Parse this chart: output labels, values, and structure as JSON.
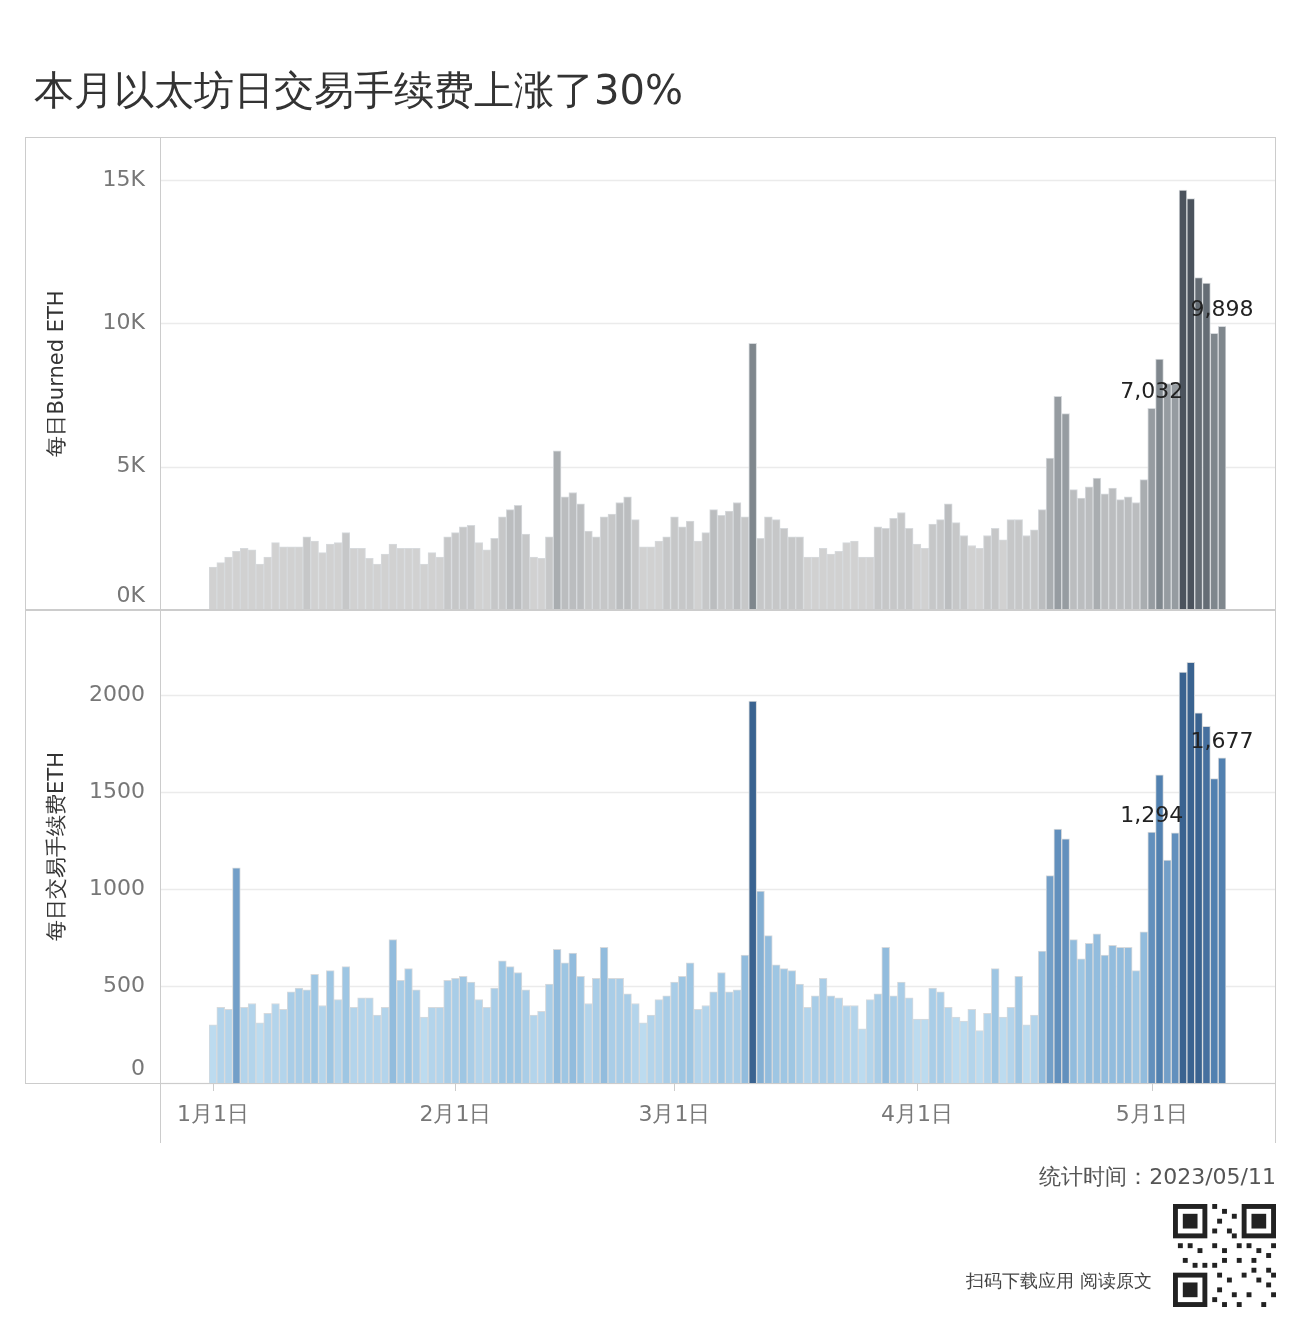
{
  "chart_data": [
    {
      "type": "bar",
      "title": "本月以太坊日交易手续费上涨了30%",
      "ylabel": "每日Burned ETH",
      "categories": [
        null,
        null,
        null,
        null,
        null,
        null,
        null,
        null,
        null,
        null,
        null,
        null,
        null,
        null,
        null,
        null,
        null,
        null,
        null,
        null,
        null,
        null,
        null,
        null,
        null,
        null,
        null,
        null,
        null,
        null,
        null,
        null,
        null,
        null,
        null,
        null,
        null,
        null,
        null,
        null,
        null,
        null,
        null,
        null,
        null,
        null,
        null,
        null,
        null,
        null,
        null,
        null,
        null,
        null,
        null,
        null,
        null,
        null,
        null,
        null,
        null,
        null,
        null,
        null,
        null,
        null,
        null,
        null,
        null,
        null,
        null,
        null,
        null,
        null,
        null,
        null,
        null,
        null,
        null,
        null,
        null,
        null,
        null,
        null,
        null,
        null,
        null,
        null,
        null,
        null,
        null,
        null,
        null,
        null,
        null,
        null,
        null,
        null,
        null,
        null,
        null,
        null,
        null,
        null,
        null,
        null,
        null,
        null,
        null,
        null,
        null,
        null,
        null,
        null,
        null,
        null,
        null,
        null,
        null,
        null,
        null,
        null,
        null,
        null,
        null,
        null,
        null,
        null,
        null,
        null
      ],
      "values": [
        1500,
        1650,
        1850,
        2050,
        2150,
        2100,
        1600,
        1850,
        2350,
        2200,
        2200,
        2200,
        2550,
        2400,
        2000,
        2300,
        2350,
        2700,
        2150,
        2150,
        1800,
        1600,
        1950,
        2300,
        2150,
        2150,
        2150,
        1600,
        2000,
        1850,
        2550,
        2700,
        2900,
        2950,
        2350,
        2100,
        2500,
        3250,
        3500,
        3650,
        2650,
        1850,
        1800,
        2550,
        5550,
        3950,
        4100,
        3700,
        2750,
        2550,
        3250,
        3350,
        3750,
        3950,
        3150,
        2200,
        2200,
        2400,
        2550,
        3250,
        2900,
        3100,
        2400,
        2700,
        3500,
        3300,
        3450,
        3750,
        3250,
        9300,
        2500,
        3250,
        3150,
        2850,
        2550,
        2550,
        1850,
        1850,
        2150,
        1950,
        2050,
        2350,
        2400,
        1850,
        1850,
        2900,
        2850,
        3200,
        3400,
        2850,
        2300,
        2150,
        3000,
        3150,
        3700,
        3050,
        2600,
        2250,
        2150,
        2600,
        2850,
        2450,
        3150,
        3150,
        2600,
        2800,
        3500,
        5300,
        7450,
        6850,
        4200,
        3900,
        4300,
        4600,
        4050,
        4250,
        3850,
        3950,
        3750,
        4550,
        7032,
        8750,
        7900,
        7900,
        14650,
        14350,
        11600,
        11400,
        9650,
        9898
      ],
      "colors": [
        "#d1d1d1",
        "#d1d1d1",
        "#d1d1d1",
        "#d1d1d1",
        "#d1d1d1",
        "#d1d1d1",
        "#d1d1d1",
        "#d1d1d1",
        "#d1d1d1",
        "#d1d1d1",
        "#d1d1d1",
        "#d1d1d1",
        "#c6c7c8",
        "#d1d1d1",
        "#d1d1d1",
        "#d1d1d1",
        "#d1d1d1",
        "#c6c7c8",
        "#d1d1d1",
        "#d1d1d1",
        "#d1d1d1",
        "#d1d1d1",
        "#d1d1d1",
        "#d1d1d1",
        "#d1d1d1",
        "#d1d1d1",
        "#d1d1d1",
        "#d1d1d1",
        "#d1d1d1",
        "#d1d1d1",
        "#c6c7c8",
        "#c6c7c8",
        "#c6c7c8",
        "#c6c7c8",
        "#d1d1d1",
        "#d1d1d1",
        "#c6c7c8",
        "#c6c7c8",
        "#bbbdbf",
        "#bbbdbf",
        "#c6c7c8",
        "#d1d1d1",
        "#d1d1d1",
        "#c6c7c8",
        "#a9adb0",
        "#bbbdbf",
        "#bbbdbf",
        "#bbbdbf",
        "#c6c7c8",
        "#c6c7c8",
        "#c6c7c8",
        "#c6c7c8",
        "#bbbdbf",
        "#bbbdbf",
        "#c6c7c8",
        "#d1d1d1",
        "#d1d1d1",
        "#d1d1d1",
        "#c6c7c8",
        "#c6c7c8",
        "#c6c7c8",
        "#c6c7c8",
        "#d1d1d1",
        "#c6c7c8",
        "#bbbdbf",
        "#c6c7c8",
        "#c6c7c8",
        "#bbbdbf",
        "#c6c7c8",
        "#7f878d",
        "#c6c7c8",
        "#c6c7c8",
        "#c6c7c8",
        "#c6c7c8",
        "#c6c7c8",
        "#c6c7c8",
        "#d1d1d1",
        "#d1d1d1",
        "#d1d1d1",
        "#d1d1d1",
        "#d1d1d1",
        "#d1d1d1",
        "#d1d1d1",
        "#d1d1d1",
        "#d1d1d1",
        "#c6c7c8",
        "#c6c7c8",
        "#c6c7c8",
        "#c6c7c8",
        "#c6c7c8",
        "#d1d1d1",
        "#d1d1d1",
        "#c6c7c8",
        "#c6c7c8",
        "#bbbdbf",
        "#c6c7c8",
        "#c6c7c8",
        "#d1d1d1",
        "#d1d1d1",
        "#c6c7c8",
        "#c6c7c8",
        "#d1d1d1",
        "#c6c7c8",
        "#c6c7c8",
        "#c6c7c8",
        "#c6c7c8",
        "#bbbdbf",
        "#a9adb0",
        "#969ca1",
        "#969ca1",
        "#bbbdbf",
        "#bbbdbf",
        "#bbbdbf",
        "#a9adb0",
        "#bbbdbf",
        "#bbbdbf",
        "#bbbdbf",
        "#bbbdbf",
        "#bbbdbf",
        "#a9adb0",
        "#969ca1",
        "#7f878d",
        "#969ca1",
        "#969ca1",
        "#4b535d",
        "#4b535d",
        "#656d75",
        "#656d75",
        "#7f878d",
        "#7f878d"
      ],
      "ylim": [
        0,
        16500
      ],
      "yticks": [
        {
          "value": 0,
          "label": "0K"
        },
        {
          "value": 5000,
          "label": "5K"
        },
        {
          "value": 10000,
          "label": "10K"
        },
        {
          "value": 15000,
          "label": "15K"
        }
      ],
      "grid": "y",
      "tick_labels": "y",
      "value_labels": [
        null,
        null,
        null,
        null,
        null,
        null,
        null,
        null,
        null,
        null,
        null,
        null,
        null,
        null,
        null,
        null,
        null,
        null,
        null,
        null,
        null,
        null,
        null,
        null,
        null,
        null,
        null,
        null,
        null,
        null,
        null,
        null,
        null,
        null,
        null,
        null,
        null,
        null,
        null,
        null,
        null,
        null,
        null,
        null,
        null,
        null,
        null,
        null,
        null,
        null,
        null,
        null,
        null,
        null,
        null,
        null,
        null,
        null,
        null,
        null,
        null,
        null,
        null,
        null,
        null,
        null,
        null,
        null,
        null,
        null,
        null,
        null,
        null,
        null,
        null,
        null,
        null,
        null,
        null,
        null,
        null,
        null,
        null,
        null,
        null,
        null,
        null,
        null,
        null,
        null,
        null,
        null,
        null,
        null,
        null,
        null,
        null,
        null,
        null,
        null,
        null,
        null,
        null,
        null,
        null,
        null,
        null,
        null,
        null,
        null,
        null,
        null,
        null,
        null,
        null,
        null,
        null,
        null,
        null,
        null,
        "7,032",
        null,
        null,
        null,
        null,
        null,
        null,
        null,
        null,
        "9,898"
      ]
    },
    {
      "type": "bar",
      "ylabel": "每日交易手续费ETH",
      "categories": [
        "1月1日",
        null,
        null,
        null,
        null,
        null,
        null,
        null,
        null,
        null,
        null,
        null,
        null,
        null,
        null,
        null,
        null,
        null,
        null,
        null,
        null,
        null,
        null,
        null,
        null,
        null,
        null,
        null,
        null,
        null,
        null,
        "2月1日",
        null,
        null,
        null,
        null,
        null,
        null,
        null,
        null,
        null,
        null,
        null,
        null,
        null,
        null,
        null,
        null,
        null,
        null,
        null,
        null,
        null,
        null,
        null,
        null,
        null,
        null,
        null,
        "3月1日",
        null,
        null,
        null,
        null,
        null,
        null,
        null,
        null,
        null,
        null,
        null,
        null,
        null,
        null,
        null,
        null,
        null,
        null,
        null,
        null,
        null,
        null,
        null,
        null,
        null,
        null,
        null,
        null,
        null,
        null,
        "4月1日",
        null,
        null,
        null,
        null,
        null,
        null,
        null,
        null,
        null,
        null,
        null,
        null,
        null,
        null,
        null,
        null,
        null,
        null,
        null,
        null,
        null,
        null,
        null,
        null,
        null,
        null,
        null,
        null,
        null,
        "5月1日",
        null,
        null,
        null,
        null,
        null,
        null,
        null,
        null,
        null
      ],
      "values": [
        300,
        390,
        380,
        1110,
        390,
        410,
        310,
        360,
        410,
        380,
        470,
        490,
        480,
        560,
        400,
        580,
        430,
        600,
        390,
        440,
        440,
        350,
        390,
        740,
        530,
        590,
        480,
        340,
        390,
        390,
        530,
        540,
        550,
        520,
        430,
        390,
        490,
        630,
        600,
        570,
        480,
        350,
        370,
        510,
        690,
        620,
        670,
        550,
        410,
        540,
        700,
        540,
        540,
        460,
        410,
        310,
        350,
        430,
        450,
        520,
        550,
        620,
        380,
        400,
        470,
        570,
        470,
        480,
        660,
        1970,
        990,
        760,
        610,
        590,
        580,
        510,
        390,
        450,
        540,
        450,
        440,
        400,
        400,
        280,
        430,
        460,
        700,
        450,
        520,
        440,
        330,
        330,
        490,
        470,
        390,
        340,
        320,
        380,
        270,
        360,
        590,
        340,
        390,
        550,
        300,
        350,
        680,
        1070,
        1310,
        1260,
        740,
        640,
        720,
        770,
        660,
        710,
        700,
        700,
        580,
        780,
        1294,
        1590,
        1150,
        1290,
        2120,
        2170,
        1910,
        1840,
        1570,
        1677
      ],
      "colors": [
        "#bcdbef",
        "#b3d4eb",
        "#b3d4eb",
        "#739fc8",
        "#b3d4eb",
        "#b3d4eb",
        "#bcdbef",
        "#b3d4eb",
        "#b3d4eb",
        "#b3d4eb",
        "#a9cde7",
        "#a9cde7",
        "#a9cde7",
        "#9ec6e3",
        "#b3d4eb",
        "#9ec6e3",
        "#b3d4eb",
        "#9ec6e3",
        "#b3d4eb",
        "#b3d4eb",
        "#b3d4eb",
        "#b3d4eb",
        "#b3d4eb",
        "#92bcdd",
        "#a9cde7",
        "#9ec6e3",
        "#a9cde7",
        "#bcdbef",
        "#b3d4eb",
        "#b3d4eb",
        "#a9cde7",
        "#a9cde7",
        "#9ec6e3",
        "#a9cde7",
        "#b3d4eb",
        "#b3d4eb",
        "#a9cde7",
        "#9ec6e3",
        "#9ec6e3",
        "#9ec6e3",
        "#a9cde7",
        "#b3d4eb",
        "#b3d4eb",
        "#a9cde7",
        "#92bcdd",
        "#9ec6e3",
        "#92bcdd",
        "#9ec6e3",
        "#b3d4eb",
        "#a9cde7",
        "#92bcdd",
        "#a9cde7",
        "#a9cde7",
        "#a9cde7",
        "#b3d4eb",
        "#bcdbef",
        "#b3d4eb",
        "#b3d4eb",
        "#a9cde7",
        "#a9cde7",
        "#9ec6e3",
        "#9ec6e3",
        "#b3d4eb",
        "#b3d4eb",
        "#a9cde7",
        "#9ec6e3",
        "#a9cde7",
        "#a9cde7",
        "#92bcdd",
        "#3a6390",
        "#83afd3",
        "#92bcdd",
        "#9ec6e3",
        "#9ec6e3",
        "#9ec6e3",
        "#a9cde7",
        "#b3d4eb",
        "#a9cde7",
        "#a9cde7",
        "#a9cde7",
        "#b3d4eb",
        "#b3d4eb",
        "#b3d4eb",
        "#bcdbef",
        "#b3d4eb",
        "#a9cde7",
        "#92bcdd",
        "#a9cde7",
        "#a9cde7",
        "#b3d4eb",
        "#bcdbef",
        "#bcdbef",
        "#a9cde7",
        "#a9cde7",
        "#b3d4eb",
        "#bcdbef",
        "#bcdbef",
        "#b3d4eb",
        "#bcdbef",
        "#b3d4eb",
        "#9ec6e3",
        "#bcdbef",
        "#b3d4eb",
        "#9ec6e3",
        "#bcdbef",
        "#b3d4eb",
        "#92bcdd",
        "#739fc8",
        "#6290bd",
        "#6290bd",
        "#92bcdd",
        "#9ec6e3",
        "#92bcdd",
        "#92bcdd",
        "#92bcdd",
        "#92bcdd",
        "#92bcdd",
        "#92bcdd",
        "#9ec6e3",
        "#92bcdd",
        "#6290bd",
        "#5281b0",
        "#739fc8",
        "#6290bd",
        "#3a6390",
        "#3a6390",
        "#3a6390",
        "#46709f",
        "#5281b0",
        "#5281b0"
      ],
      "ylim": [
        0,
        2440
      ],
      "yticks": [
        0,
        500,
        1000,
        1500,
        2000
      ],
      "grid": "y",
      "value_labels": [
        null,
        null,
        null,
        null,
        null,
        null,
        null,
        null,
        null,
        null,
        null,
        null,
        null,
        null,
        null,
        null,
        null,
        null,
        null,
        null,
        null,
        null,
        null,
        null,
        null,
        null,
        null,
        null,
        null,
        null,
        null,
        null,
        null,
        null,
        null,
        null,
        null,
        null,
        null,
        null,
        null,
        null,
        null,
        null,
        null,
        null,
        null,
        null,
        null,
        null,
        null,
        null,
        null,
        null,
        null,
        null,
        null,
        null,
        null,
        null,
        null,
        null,
        null,
        null,
        null,
        null,
        null,
        null,
        null,
        null,
        null,
        null,
        null,
        null,
        null,
        null,
        null,
        null,
        null,
        null,
        null,
        null,
        null,
        null,
        null,
        null,
        null,
        null,
        null,
        null,
        null,
        null,
        null,
        null,
        null,
        null,
        null,
        null,
        null,
        null,
        null,
        null,
        null,
        null,
        null,
        null,
        null,
        null,
        null,
        null,
        null,
        null,
        null,
        null,
        null,
        null,
        null,
        null,
        null,
        null,
        "1,294",
        null,
        null,
        null,
        null,
        null,
        null,
        null,
        null,
        "1,677"
      ],
      "annotations": [
        "统计时间：2023/05/11",
        "扫码下载应用 阅读原文"
      ]
    }
  ]
}
